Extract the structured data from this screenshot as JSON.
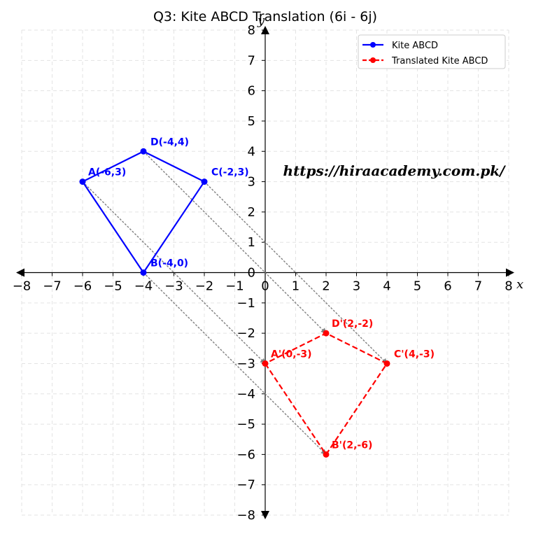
{
  "chart_data": {
    "type": "line",
    "title": "Q3: Kite ABCD Translation (6i - 6j)",
    "xlabel": "x",
    "ylabel": "y",
    "xlim": [
      -8,
      8
    ],
    "ylim": [
      -8,
      8
    ],
    "xticks": [
      -8,
      -7,
      -6,
      -5,
      -4,
      -3,
      -2,
      -1,
      0,
      1,
      2,
      3,
      4,
      5,
      6,
      7,
      8
    ],
    "yticks": [
      -8,
      -7,
      -6,
      -5,
      -4,
      -3,
      -2,
      -1,
      0,
      1,
      2,
      3,
      4,
      5,
      6,
      7,
      8
    ],
    "grid": true,
    "legend_position": "top-right",
    "series": [
      {
        "name": "Kite ABCD",
        "color": "#0000ff",
        "linestyle": "solid",
        "points": [
          {
            "x": -6,
            "y": 3,
            "label": "A(-6,3)"
          },
          {
            "x": -4,
            "y": 0,
            "label": "B(-4,0)"
          },
          {
            "x": -2,
            "y": 3,
            "label": "C(-2,3)"
          },
          {
            "x": -4,
            "y": 4,
            "label": "D(-4,4)"
          }
        ]
      },
      {
        "name": "Translated Kite ABCD",
        "color": "#ff0000",
        "linestyle": "dashed",
        "points": [
          {
            "x": 0,
            "y": -3,
            "label": "A'(0,-3)"
          },
          {
            "x": 2,
            "y": -6,
            "label": "B'(2,-6)"
          },
          {
            "x": 4,
            "y": -3,
            "label": "C'(4,-3)"
          },
          {
            "x": 2,
            "y": -2,
            "label": "D'(2,-2)"
          }
        ]
      }
    ],
    "translation_arrows": [
      {
        "from": [
          -6,
          3
        ],
        "to": [
          0,
          -3
        ]
      },
      {
        "from": [
          -4,
          0
        ],
        "to": [
          2,
          -6
        ]
      },
      {
        "from": [
          -2,
          3
        ],
        "to": [
          4,
          -3
        ]
      },
      {
        "from": [
          -4,
          4
        ],
        "to": [
          2,
          -2
        ]
      }
    ],
    "arrow_color": "#808080",
    "watermark": "https://hiraacademy.com.pk/"
  }
}
